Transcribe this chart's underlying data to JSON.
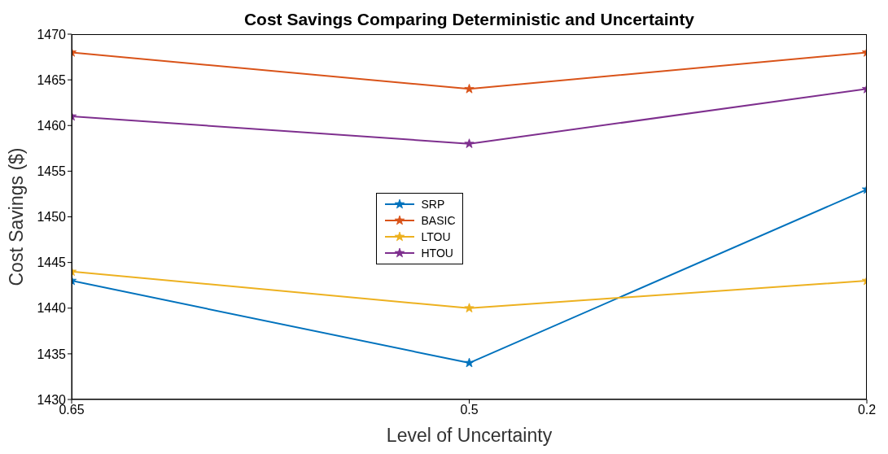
{
  "chart_data": {
    "type": "line",
    "title": "Cost Savings Comparing Deterministic and Uncertainty",
    "xlabel": "Level of Uncertainty",
    "ylabel": "Cost Savings ($)",
    "categories": [
      "0.65",
      "0.5",
      "0.2"
    ],
    "series": [
      {
        "name": "SRP",
        "color": "#0072bd",
        "values": [
          1443,
          1434,
          1453
        ]
      },
      {
        "name": "BASIC",
        "color": "#d95319",
        "values": [
          1468,
          1464,
          1468
        ]
      },
      {
        "name": "LTOU",
        "color": "#edb120",
        "values": [
          1444,
          1440,
          1443
        ]
      },
      {
        "name": "HTOU",
        "color": "#7e2f8e",
        "values": [
          1461,
          1458,
          1464
        ]
      }
    ],
    "ylim": [
      1430,
      1470
    ],
    "yticks": [
      1430,
      1435,
      1440,
      1445,
      1450,
      1455,
      1460,
      1465,
      1470
    ],
    "grid": false,
    "legend": "center",
    "marker": "star",
    "line_style": "solid"
  }
}
